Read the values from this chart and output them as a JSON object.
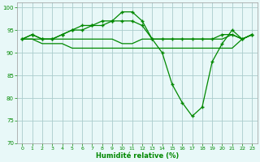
{
  "xlabel": "Humidité relative (%)",
  "background_color": "#e8f8f8",
  "grid_color": "#aacccc",
  "line_color": "#008800",
  "ylim": [
    70,
    101
  ],
  "xlim": [
    -0.5,
    23.5
  ],
  "yticks": [
    70,
    75,
    80,
    85,
    90,
    95,
    100
  ],
  "xticks": [
    0,
    1,
    2,
    3,
    4,
    5,
    6,
    7,
    8,
    9,
    10,
    11,
    12,
    13,
    14,
    15,
    16,
    17,
    18,
    19,
    20,
    21,
    22,
    23
  ],
  "series": [
    {
      "y": [
        93,
        94,
        93,
        93,
        94,
        95,
        96,
        96,
        97,
        97,
        99,
        99,
        97,
        93,
        90,
        83,
        79,
        76,
        78,
        88,
        92,
        95,
        93,
        94
      ],
      "marker": true
    },
    {
      "y": [
        93,
        94,
        93,
        93,
        94,
        95,
        95,
        96,
        96,
        97,
        97,
        97,
        96,
        93,
        93,
        93,
        93,
        93,
        93,
        93,
        94,
        94,
        93,
        94
      ],
      "marker": true
    },
    {
      "y": [
        93,
        93,
        93,
        93,
        93,
        93,
        93,
        93,
        93,
        93,
        92,
        92,
        93,
        93,
        93,
        93,
        93,
        93,
        93,
        93,
        93,
        94,
        93,
        94
      ],
      "marker": false
    },
    {
      "y": [
        93,
        93,
        92,
        92,
        92,
        91,
        91,
        91,
        91,
        91,
        91,
        91,
        91,
        91,
        91,
        91,
        91,
        91,
        91,
        91,
        91,
        91,
        93,
        94
      ],
      "marker": false
    }
  ]
}
